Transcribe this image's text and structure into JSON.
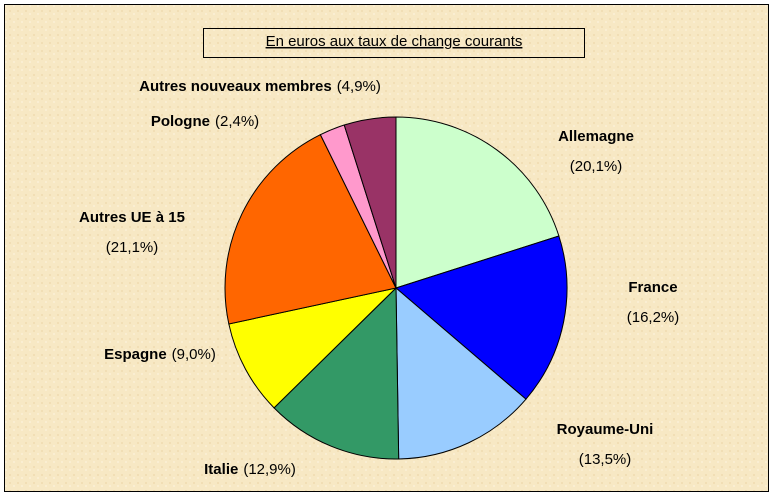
{
  "chart_data": {
    "type": "pie",
    "title": "En euros aux taux de change courants",
    "categories": [
      "Allemagne",
      "France",
      "Royaume-Uni",
      "Italie",
      "Espagne",
      "Autres UE à 15",
      "Pologne",
      "Autres nouveaux membres"
    ],
    "values": [
      20.1,
      16.2,
      13.5,
      12.9,
      9.0,
      21.1,
      2.4,
      4.9
    ],
    "value_labels": [
      "(20,1%)",
      "(16,2%)",
      "(13,5%)",
      "(12,9%)",
      "(9,0%)",
      "(21,1%)",
      "(2,4%)",
      "(4,9%)"
    ],
    "colors": [
      "#ccffcc",
      "#0000ff",
      "#99ccff",
      "#339966",
      "#ffff00",
      "#ff6600",
      "#ff99cc",
      "#993366"
    ]
  }
}
